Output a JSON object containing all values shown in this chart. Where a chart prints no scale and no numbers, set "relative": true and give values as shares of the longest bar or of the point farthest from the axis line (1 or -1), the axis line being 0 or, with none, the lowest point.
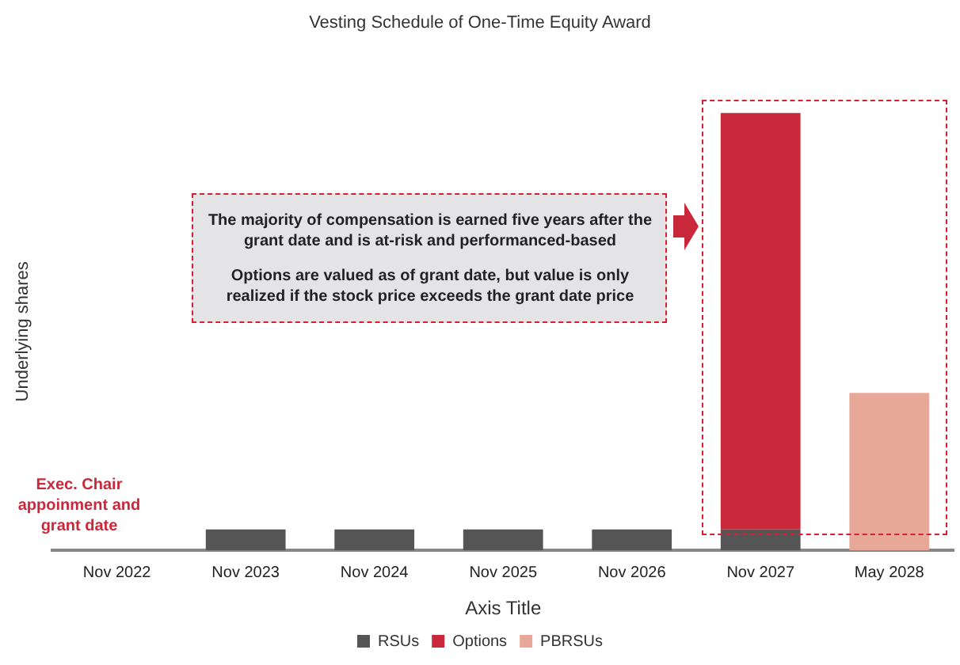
{
  "chart_data": {
    "type": "bar",
    "title": "Vesting Schedule of One-Time Equity Award",
    "xlabel": "Axis Title",
    "ylabel": "Underlying shares",
    "categories": [
      "Nov 2022",
      "Nov 2023",
      "Nov 2024",
      "Nov 2025",
      "Nov 2026",
      "Nov 2027",
      "May 2028"
    ],
    "series": [
      {
        "name": "RSUs",
        "color": "#555555",
        "values": [
          null,
          0.048,
          0.048,
          0.048,
          0.048,
          0.048,
          null
        ]
      },
      {
        "name": "Options",
        "color": "#c8283a",
        "values": [
          null,
          null,
          null,
          null,
          null,
          0.952,
          null
        ]
      },
      {
        "name": "PBRSUs",
        "color": "#e8a898",
        "values": [
          null,
          null,
          null,
          null,
          null,
          null,
          0.36
        ]
      }
    ],
    "stacked": true,
    "relative": true,
    "grid": false,
    "legend": "bottom",
    "annotations": [
      "Exec. Chair appoinment and grant date",
      "The majority of compensation is earned five years after the grant date and is at-risk and performanced-based",
      "Options are valued as of grant date, but value is only realized if the stock price exceeds the grant date price"
    ]
  }
}
